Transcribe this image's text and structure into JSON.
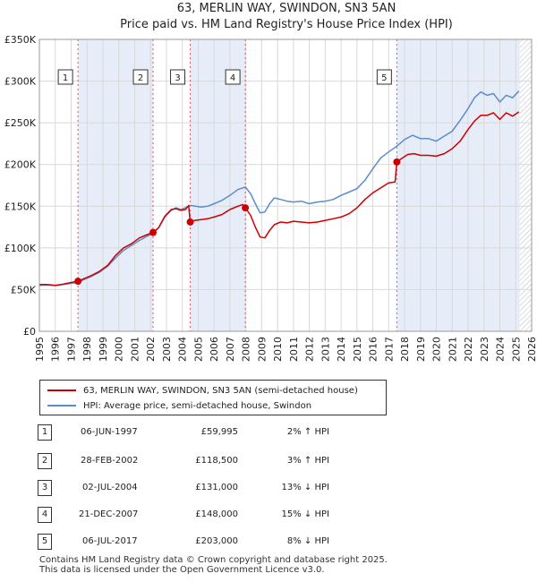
{
  "chart_data": {
    "type": "line",
    "title": "63, MERLIN WAY, SWINDON, SN3 5AN",
    "subtitle": "Price paid vs. HM Land Registry's House Price Index (HPI)",
    "xlabel": "",
    "ylabel": "",
    "xlim": [
      1995,
      2026
    ],
    "ylim": [
      0,
      350000
    ],
    "x_ticks": [
      "1995",
      "1996",
      "1997",
      "1998",
      "1999",
      "2000",
      "2001",
      "2002",
      "2003",
      "2004",
      "2005",
      "2006",
      "2007",
      "2008",
      "2009",
      "2010",
      "2011",
      "2012",
      "2013",
      "2014",
      "2015",
      "2016",
      "2017",
      "2018",
      "2019",
      "2020",
      "2021",
      "2022",
      "2023",
      "2024",
      "2025",
      "2026"
    ],
    "y_ticks": [
      {
        "value": 0,
        "label": "£0"
      },
      {
        "value": 50000,
        "label": "£50K"
      },
      {
        "value": 100000,
        "label": "£100K"
      },
      {
        "value": 150000,
        "label": "£150K"
      },
      {
        "value": 200000,
        "label": "£200K"
      },
      {
        "value": 250000,
        "label": "£250K"
      },
      {
        "value": 300000,
        "label": "£300K"
      },
      {
        "value": 350000,
        "label": "£350K"
      }
    ],
    "grid": true,
    "shaded_periods": [
      [
        1997.43,
        2002.16
      ],
      [
        2004.5,
        2007.97
      ],
      [
        2017.51,
        2025.25
      ]
    ],
    "hatched_from": 2025.25,
    "series": [
      {
        "name": "63, MERLIN WAY, SWINDON, SN3 5AN (semi-detached house)",
        "color": "#cc0000",
        "x": [
          1995.0,
          1995.5,
          1996.0,
          1996.5,
          1997.0,
          1997.43,
          1997.8,
          1998.3,
          1998.8,
          1999.3,
          1999.8,
          2000.3,
          2000.8,
          2001.3,
          2001.8,
          2002.16,
          2002.5,
          2002.9,
          2003.3,
          2003.6,
          2003.9,
          2004.2,
          2004.4,
          2004.5,
          2004.8,
          2005.2,
          2005.6,
          2006.0,
          2006.5,
          2007.0,
          2007.5,
          2007.8,
          2007.97,
          2008.3,
          2008.6,
          2008.9,
          2009.2,
          2009.5,
          2009.8,
          2010.2,
          2010.6,
          2011.0,
          2011.5,
          2012.0,
          2012.5,
          2013.0,
          2013.5,
          2014.0,
          2014.5,
          2015.0,
          2015.5,
          2016.0,
          2016.5,
          2017.0,
          2017.4,
          2017.51,
          2017.8,
          2018.2,
          2018.6,
          2019.0,
          2019.5,
          2020.0,
          2020.5,
          2021.0,
          2021.5,
          2022.0,
          2022.4,
          2022.8,
          2023.2,
          2023.6,
          2024.0,
          2024.4,
          2024.8,
          2025.2
        ],
        "values": [
          56000,
          56000,
          55000,
          56500,
          58500,
          59995,
          63000,
          67000,
          72000,
          79000,
          91000,
          100000,
          105000,
          112000,
          116000,
          118500,
          124000,
          138000,
          146000,
          147000,
          145000,
          146000,
          151000,
          131000,
          133000,
          134000,
          135000,
          137000,
          140000,
          146000,
          150000,
          152000,
          148000,
          139000,
          125000,
          113000,
          112000,
          121000,
          128000,
          131000,
          130000,
          132000,
          131000,
          130000,
          131000,
          133000,
          135000,
          137000,
          141000,
          148000,
          158000,
          166000,
          172000,
          178000,
          179000,
          203000,
          207000,
          212000,
          213000,
          211000,
          211000,
          210000,
          213000,
          219000,
          228000,
          242000,
          252000,
          259000,
          259000,
          262000,
          254000,
          262000,
          258000,
          263000
        ]
      },
      {
        "name": "HPI: Average price, semi-detached house, Swindon",
        "color": "#5b8dc9",
        "x": [
          1995.0,
          1995.5,
          1996.0,
          1996.5,
          1997.0,
          1997.43,
          1997.8,
          1998.3,
          1998.8,
          1999.3,
          1999.8,
          2000.3,
          2000.8,
          2001.3,
          2001.8,
          2002.16,
          2002.5,
          2002.9,
          2003.3,
          2003.6,
          2003.9,
          2004.2,
          2004.5,
          2004.8,
          2005.2,
          2005.6,
          2006.0,
          2006.5,
          2007.0,
          2007.5,
          2007.97,
          2008.3,
          2008.6,
          2008.9,
          2009.2,
          2009.5,
          2009.8,
          2010.2,
          2010.6,
          2011.0,
          2011.5,
          2012.0,
          2012.5,
          2013.0,
          2013.5,
          2014.0,
          2014.5,
          2015.0,
          2015.5,
          2016.0,
          2016.5,
          2017.0,
          2017.51,
          2018.0,
          2018.5,
          2019.0,
          2019.5,
          2020.0,
          2020.5,
          2021.0,
          2021.5,
          2022.0,
          2022.4,
          2022.8,
          2023.2,
          2023.6,
          2024.0,
          2024.4,
          2024.8,
          2025.2
        ],
        "values": [
          55000,
          55500,
          55000,
          56000,
          57500,
          58500,
          62000,
          66000,
          71000,
          78000,
          88000,
          97000,
          103000,
          109000,
          114000,
          118000,
          124000,
          137000,
          145000,
          148000,
          146000,
          148000,
          151000,
          150000,
          149000,
          150000,
          153000,
          157000,
          163000,
          170000,
          173000,
          165000,
          153000,
          142000,
          143000,
          153000,
          160000,
          158000,
          156000,
          155000,
          156000,
          153000,
          155000,
          156000,
          158000,
          163000,
          167000,
          171000,
          181000,
          195000,
          208000,
          215000,
          222000,
          230000,
          235000,
          231000,
          231000,
          228000,
          234000,
          240000,
          253000,
          267000,
          280000,
          287000,
          283000,
          285000,
          275000,
          283000,
          280000,
          288000
        ]
      }
    ],
    "sales": [
      {
        "n": "1",
        "x": 1997.43,
        "y": 59995
      },
      {
        "n": "2",
        "x": 2002.16,
        "y": 118500
      },
      {
        "n": "3",
        "x": 2004.5,
        "y": 131000
      },
      {
        "n": "4",
        "x": 2007.97,
        "y": 148000
      },
      {
        "n": "5",
        "x": 2017.51,
        "y": 203000
      }
    ]
  },
  "legend": {
    "property_label": "63, MERLIN WAY, SWINDON, SN3 5AN (semi-detached house)",
    "hpi_label": "HPI: Average price, semi-detached house, Swindon"
  },
  "sales_table": [
    {
      "n": "1",
      "date": "06-JUN-1997",
      "price": "£59,995",
      "hpi": "2% ↑ HPI"
    },
    {
      "n": "2",
      "date": "28-FEB-2002",
      "price": "£118,500",
      "hpi": "3% ↑ HPI"
    },
    {
      "n": "3",
      "date": "02-JUL-2004",
      "price": "£131,000",
      "hpi": "13% ↓ HPI"
    },
    {
      "n": "4",
      "date": "21-DEC-2007",
      "price": "£148,000",
      "hpi": "15% ↓ HPI"
    },
    {
      "n": "5",
      "date": "06-JUL-2017",
      "price": "£203,000",
      "hpi": "8% ↓ HPI"
    }
  ],
  "footer": {
    "line1": "Contains HM Land Registry data © Crown copyright and database right 2025.",
    "line2": "This data is licensed under the Open Government Licence v3.0."
  }
}
